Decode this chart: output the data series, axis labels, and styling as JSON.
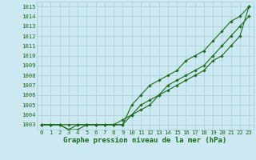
{
  "x": [
    0,
    1,
    2,
    3,
    4,
    5,
    6,
    7,
    8,
    9,
    10,
    11,
    12,
    13,
    14,
    15,
    16,
    17,
    18,
    19,
    20,
    21,
    22,
    23
  ],
  "line1": [
    1003,
    1003,
    1003,
    1003,
    1003,
    1003,
    1003,
    1003,
    1003,
    1003,
    1005,
    1006,
    1007,
    1007.5,
    1008,
    1008.5,
    1009.5,
    1010,
    1010.5,
    1011.5,
    1012.5,
    1013.5,
    1014,
    1015
  ],
  "line2": [
    1003,
    1003,
    1003,
    1002.5,
    1002.5,
    1003,
    1003,
    1003,
    1003,
    1003,
    1004,
    1004.5,
    1005,
    1006,
    1007,
    1007.5,
    1008,
    1008.5,
    1009,
    1010,
    1011,
    1012,
    1013,
    1014
  ],
  "line3": [
    1003,
    1003,
    1003,
    1002.5,
    1003,
    1003,
    1003,
    1003,
    1003,
    1003.5,
    1004,
    1005,
    1005.5,
    1006,
    1006.5,
    1007,
    1007.5,
    1008,
    1008.5,
    1009.5,
    1010,
    1011,
    1012,
    1015
  ],
  "bg_color": "#cce8f0",
  "grid_color": "#aaccda",
  "line_color": "#1a6b1a",
  "title": "Graphe pression niveau de la mer (hPa)",
  "ymin": 1003,
  "ymax": 1015,
  "xmin": 0,
  "xmax": 23,
  "marker": "D",
  "marker_size": 1.8,
  "linewidth": 0.8,
  "title_fontsize": 6.5,
  "tick_fontsize": 5.2
}
